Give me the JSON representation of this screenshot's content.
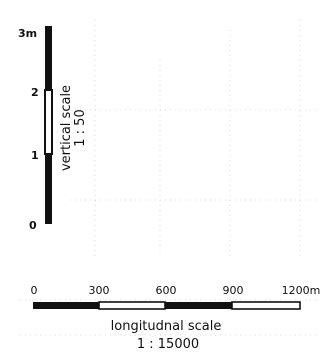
{
  "vertical_scale": {
    "ticks": [
      "0",
      "1",
      "2",
      "3m"
    ],
    "label": "vertical scale",
    "ratio": "1 : 50"
  },
  "longitudinal_scale": {
    "ticks": [
      "0",
      "300",
      "600",
      "900",
      "1200m"
    ],
    "label": "longitudnal scale",
    "ratio": "1 : 15000"
  },
  "colors": {
    "ink": "#111111",
    "bar_fill": "#ffffff",
    "background": "#ffffff"
  }
}
